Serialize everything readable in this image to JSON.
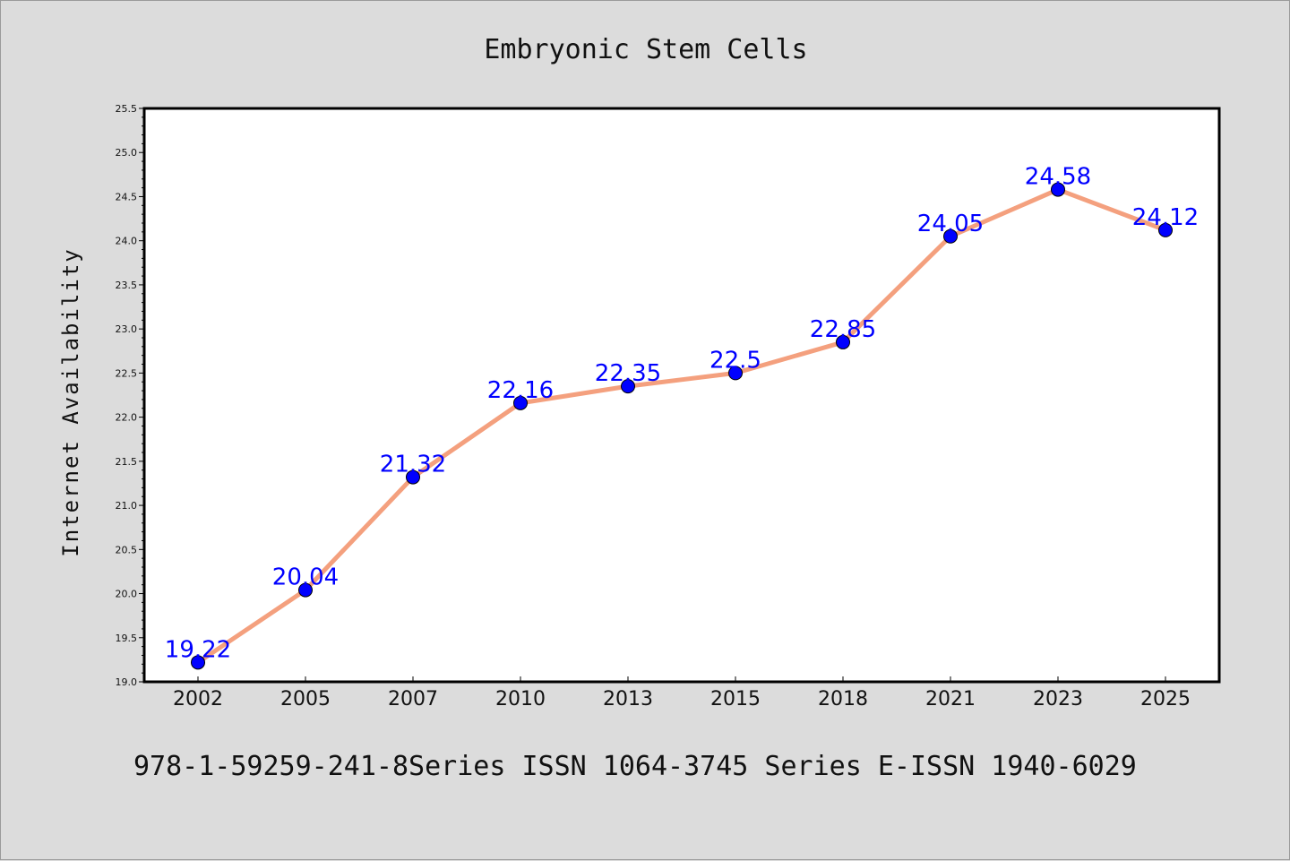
{
  "chart_data": {
    "type": "line",
    "title": "Embryonic Stem Cells",
    "xlabel": "",
    "ylabel": "Internet Availability",
    "categories": [
      "2002",
      "2005",
      "2007",
      "2010",
      "2013",
      "2015",
      "2018",
      "2021",
      "2023",
      "2025"
    ],
    "series": [
      {
        "values": [
          19.22,
          20.04,
          21.32,
          22.16,
          22.35,
          22.5,
          22.85,
          24.05,
          24.58,
          24.12
        ],
        "labels": [
          "19.22",
          "20.04",
          "21.32",
          "22.16",
          "22.35",
          "22.5",
          "22.85",
          "24.05",
          "24.58",
          "24.12"
        ]
      }
    ],
    "ylim": [
      19.0,
      25.5
    ],
    "yticks": [
      "19.0",
      "19.5",
      "20.0",
      "20.5",
      "21.0",
      "21.5",
      "22.0",
      "22.5",
      "23.0",
      "23.5",
      "24.0",
      "24.5",
      "25.0",
      "25.5"
    ],
    "grid": false,
    "legend": "none",
    "colors": {
      "line": "#f4a07e",
      "marker": "#0000ff",
      "data_label": "#0000ff",
      "background": "#dcdcdc",
      "plot_background": "#ffffff"
    }
  },
  "footer": {
    "text": "978-1-59259-241-8Series ISSN 1064-3745 Series E-ISSN 1940-6029"
  }
}
